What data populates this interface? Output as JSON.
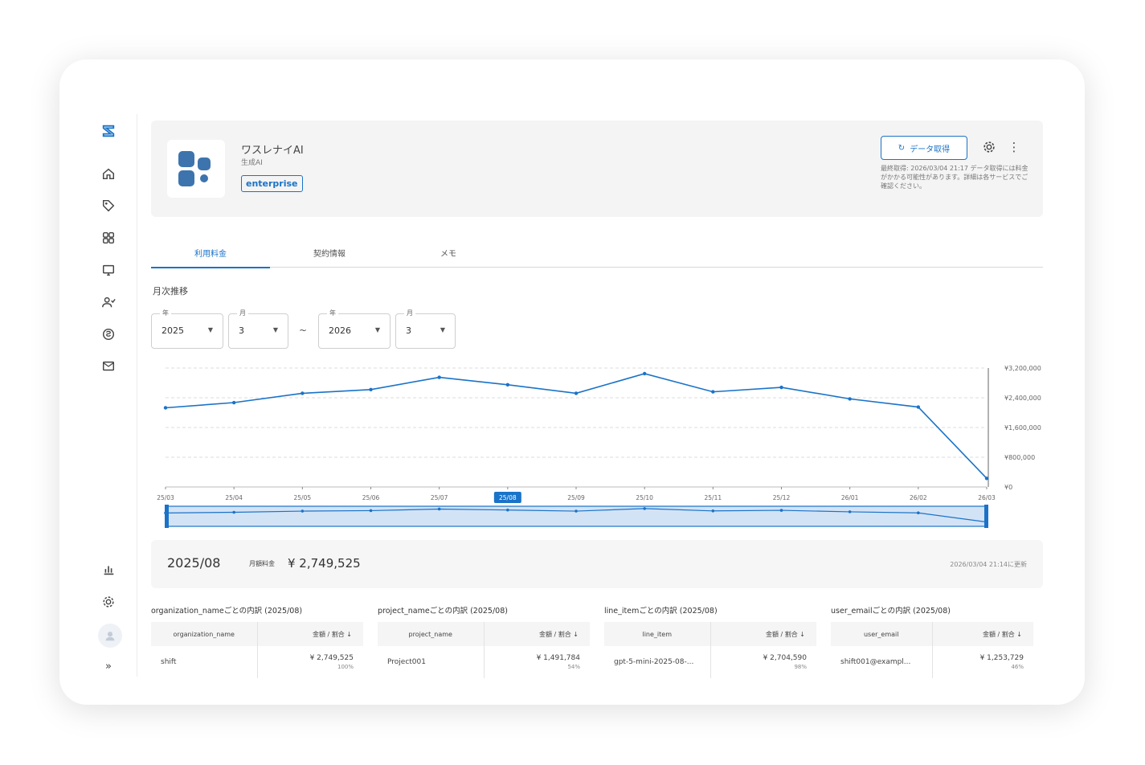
{
  "header": {
    "app_name": "ワスレナイAI",
    "category": "生成AI",
    "plan": "enterprise",
    "fetch_button": "データ取得",
    "fetch_info": "最終取得: 2026/03/04 21:17 データ取得には料金がかかる可能性があります。詳細は各サービスでご確認ください。"
  },
  "tabs": [
    "利用料金",
    "契約情報",
    "メモ"
  ],
  "section_title": "月次推移",
  "filters": {
    "from_year_label": "年",
    "from_year": "2025",
    "from_month_label": "月",
    "from_month": "3",
    "separator": "~",
    "to_year_label": "年",
    "to_year": "2026",
    "to_month_label": "月",
    "to_month": "3"
  },
  "chart_data": {
    "type": "line",
    "categories": [
      "25/03",
      "25/04",
      "25/05",
      "25/06",
      "25/07",
      "25/08",
      "25/09",
      "25/10",
      "25/11",
      "25/12",
      "26/01",
      "26/02",
      "26/03"
    ],
    "values": [
      2130000,
      2270000,
      2520000,
      2620000,
      2950000,
      2749525,
      2520000,
      3050000,
      2560000,
      2680000,
      2370000,
      2150000,
      230000
    ],
    "y_ticks": [
      "¥3,200,000",
      "¥2,400,000",
      "¥1,600,000",
      "¥800,000",
      "¥0"
    ],
    "ylim": [
      0,
      3200000
    ],
    "selected": "25/08",
    "grid": true,
    "color": "#1a73c8"
  },
  "summary": {
    "month": "2025/08",
    "label": "月額料金",
    "amount": "¥ 2,749,525",
    "updated": "2026/03/04 21:14に更新"
  },
  "tables": [
    {
      "title": "organization_nameごとの内訳 (2025/08)",
      "col1": "organization_name",
      "col2": "金額 / 割合",
      "name": "shift",
      "amount": "¥ 2,749,525",
      "pct": "100%"
    },
    {
      "title": "project_nameごとの内訳 (2025/08)",
      "col1": "project_name",
      "col2": "金額 / 割合",
      "name": "Project001",
      "amount": "¥ 1,491,784",
      "pct": "54%"
    },
    {
      "title": "line_itemごとの内訳 (2025/08)",
      "col1": "line_item",
      "col2": "金額 / 割合",
      "name": "gpt-5-mini-2025-08-...",
      "amount": "¥ 2,704,590",
      "pct": "98%"
    },
    {
      "title": "user_emailごとの内訳 (2025/08)",
      "col1": "user_email",
      "col2": "金額 / 割合",
      "name": "shift001@exampl...",
      "amount": "¥ 1,253,729",
      "pct": "46%"
    }
  ],
  "sort_icon": "arrow-down-icon"
}
